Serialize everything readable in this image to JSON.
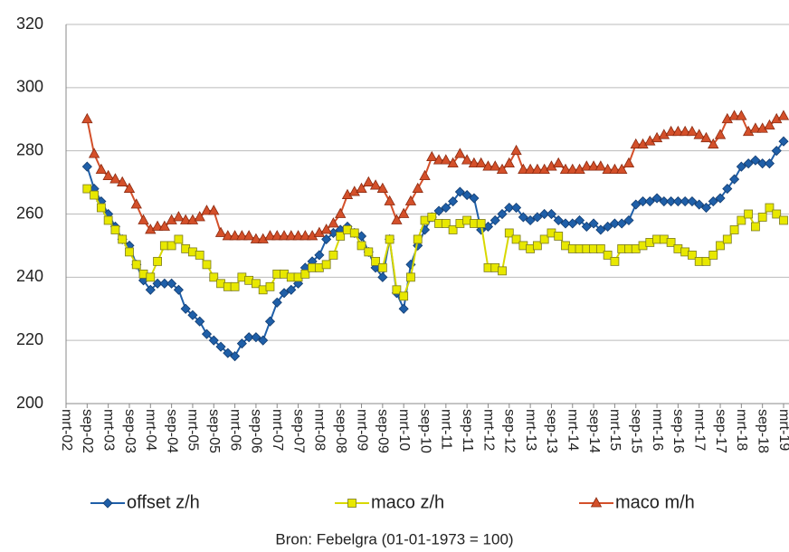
{
  "chart_data": {
    "type": "line",
    "categories": [
      "mrt-02",
      null,
      null,
      "sep-02",
      null,
      null,
      "mrt-03",
      null,
      null,
      "sep-03",
      null,
      null,
      "mrt-04",
      null,
      null,
      "sep-04",
      null,
      null,
      "mrt-05",
      null,
      null,
      "sep-05",
      null,
      null,
      "mrt-06",
      null,
      null,
      "sep-06",
      null,
      null,
      "mrt-07",
      null,
      null,
      "sep-07",
      null,
      null,
      "mrt-08",
      null,
      null,
      "sep-08",
      null,
      null,
      "mrt-09",
      null,
      null,
      "sep-09",
      null,
      null,
      "mrt-10",
      null,
      null,
      "sep-10",
      null,
      null,
      "mrt-11",
      null,
      null,
      "sep-11",
      null,
      null,
      "mrt-12",
      null,
      null,
      "sep-12",
      null,
      null,
      "mrt-13",
      null,
      null,
      "sep-13",
      null,
      null,
      "mrt-14",
      null,
      null,
      "sep-14",
      null,
      null,
      "mrt-15",
      null,
      null,
      "sep-15",
      null,
      null,
      "mrt-16",
      null,
      null,
      "sep-16",
      null,
      null,
      "mrt-17",
      null,
      null,
      "sep-17",
      null,
      null,
      "mrt-18",
      null,
      null,
      "sep-18",
      null,
      null,
      "mrt-19"
    ],
    "series": [
      {
        "name": "offset z/h",
        "color": "#1f5fa8",
        "marker": "diamond",
        "values": [
          null,
          null,
          null,
          275,
          268,
          264,
          260,
          256,
          252,
          250,
          244,
          239,
          236,
          238,
          238,
          238,
          236,
          230,
          228,
          226,
          222,
          220,
          218,
          216,
          215,
          219,
          221,
          221,
          220,
          226,
          232,
          235,
          236,
          238,
          243,
          245,
          247,
          252,
          254,
          255,
          256,
          254,
          253,
          248,
          243,
          240,
          252,
          235,
          230,
          244,
          250,
          255,
          259,
          261,
          262,
          264,
          267,
          266,
          265,
          255,
          256,
          258,
          260,
          262,
          262,
          259,
          258,
          259,
          260,
          260,
          258,
          257,
          257,
          258,
          256,
          257,
          255,
          256,
          257,
          257,
          258,
          263,
          264,
          264,
          265,
          264,
          264,
          264,
          264,
          264,
          263,
          262,
          264,
          265,
          268,
          271,
          275,
          276,
          277,
          276,
          276,
          280,
          283
        ]
      },
      {
        "name": "maco z/h",
        "color": "#e8e800",
        "marker": "square",
        "values": [
          null,
          null,
          null,
          268,
          266,
          262,
          258,
          255,
          252,
          248,
          244,
          241,
          240,
          245,
          250,
          250,
          252,
          249,
          248,
          247,
          244,
          240,
          238,
          237,
          237,
          240,
          239,
          238,
          236,
          237,
          241,
          241,
          240,
          240,
          241,
          243,
          243,
          244,
          247,
          253,
          255,
          254,
          250,
          248,
          245,
          243,
          252,
          236,
          234,
          240,
          252,
          258,
          259,
          257,
          257,
          255,
          257,
          258,
          257,
          257,
          243,
          243,
          242,
          254,
          252,
          250,
          249,
          250,
          252,
          254,
          253,
          250,
          249,
          249,
          249,
          249,
          249,
          247,
          245,
          249,
          249,
          249,
          250,
          251,
          252,
          252,
          251,
          249,
          248,
          247,
          245,
          245,
          247,
          250,
          252,
          255,
          258,
          260,
          256,
          259,
          262,
          260,
          258
        ]
      },
      {
        "name": "maco m/h",
        "color": "#d4502a",
        "marker": "triangle",
        "values": [
          null,
          null,
          null,
          290,
          279,
          274,
          272,
          271,
          270,
          268,
          263,
          258,
          255,
          256,
          256,
          258,
          259,
          258,
          258,
          259,
          261,
          261,
          254,
          253,
          253,
          253,
          253,
          252,
          252,
          253,
          253,
          253,
          253,
          253,
          253,
          253,
          254,
          255,
          257,
          260,
          266,
          267,
          268,
          270,
          269,
          268,
          264,
          258,
          260,
          264,
          268,
          272,
          278,
          277,
          277,
          276,
          279,
          277,
          276,
          276,
          275,
          275,
          274,
          276,
          280,
          274,
          274,
          274,
          274,
          275,
          276,
          274,
          274,
          274,
          275,
          275,
          275,
          274,
          274,
          274,
          276,
          282,
          282,
          283,
          284,
          285,
          286,
          286,
          286,
          286,
          285,
          284,
          282,
          285,
          290,
          291,
          291,
          286,
          287,
          287,
          288,
          290,
          291
        ]
      }
    ],
    "ylim": [
      200,
      320
    ],
    "yticks": [
      200,
      220,
      240,
      260,
      280,
      300,
      320
    ],
    "grid": true,
    "legend": "bottom",
    "note": "Bron: Febelgra (01-01-1973 = 100)"
  }
}
